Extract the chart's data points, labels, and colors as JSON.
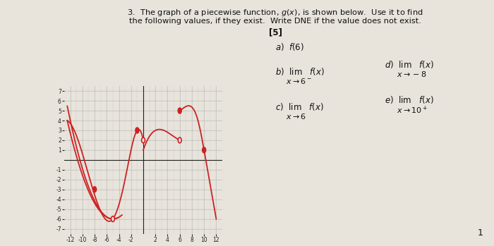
{
  "bg_color": "#e8e4dc",
  "curve_color": "#cc2222",
  "grid_color": "#bbbbbb",
  "axis_color": "#222222",
  "text_color": "#111111",
  "xlim": [
    -13,
    13
  ],
  "ylim": [
    -7.5,
    7.5
  ],
  "xticks": [
    -12,
    -10,
    -8,
    -6,
    -4,
    -2,
    2,
    4,
    6,
    8,
    10,
    12
  ],
  "yticks": [
    -7,
    -6,
    -5,
    -4,
    -3,
    -2,
    -1,
    1,
    2,
    3,
    4,
    5,
    6,
    7
  ],
  "open_circles": [
    [
      -5,
      -6
    ],
    [
      0,
      2
    ],
    [
      6,
      2
    ]
  ],
  "filled_circles": [
    [
      -8,
      -3
    ],
    [
      -1,
      3
    ],
    [
      6,
      5
    ],
    [
      10,
      1
    ]
  ]
}
